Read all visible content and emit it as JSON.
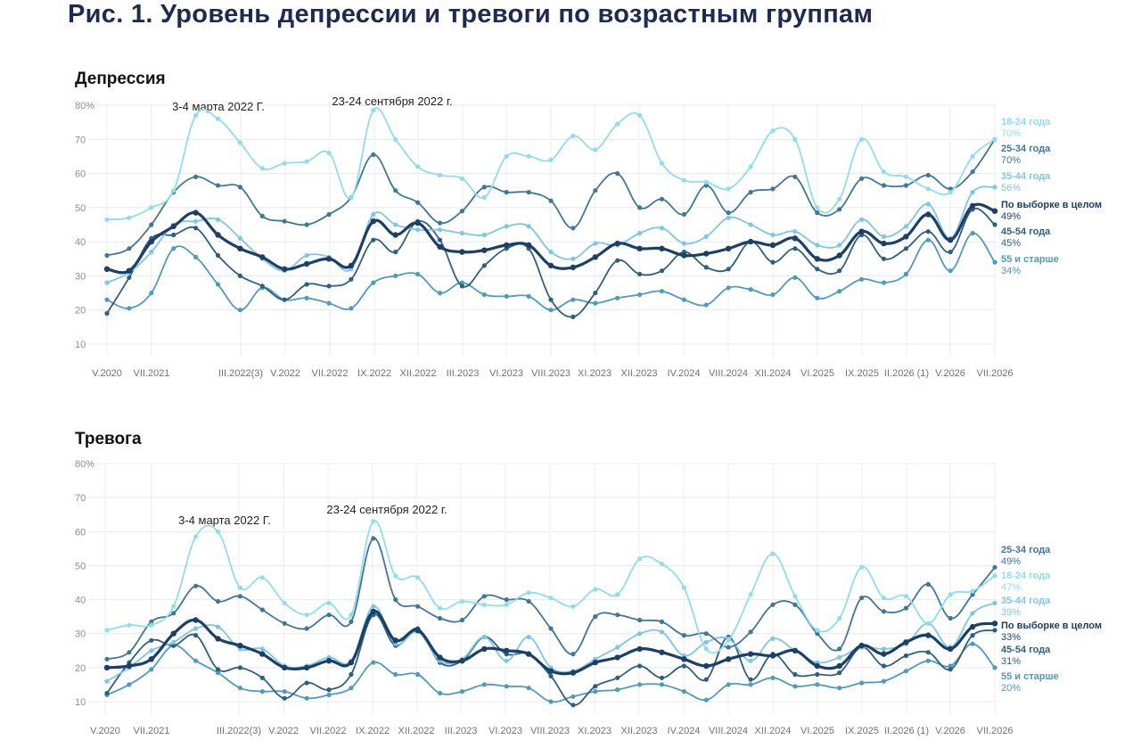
{
  "figure_title": "Рис. 1. Уровень депрессии и тревоги по возрастным группам",
  "colors": {
    "18-24": "#8fdcf0",
    "25-34": "#3f7699",
    "35-44": "#7cc6e6",
    "overall": "#1b3f66",
    "45-54": "#2e5f80",
    "55+": "#4f9ac0"
  },
  "chart_data": [
    {
      "type": "line",
      "title": "Депрессия",
      "ylim": [
        10,
        80
      ],
      "yticks": [
        "80%",
        "70",
        "60",
        "50",
        "40",
        "30",
        "20",
        "10"
      ],
      "grid": true,
      "x_tick_labels": [
        "V.2020",
        "VII.2021",
        "III.2022(3)",
        "V.2022",
        "VII.2022",
        "IX.2022",
        "XII.2022",
        "III.2023",
        "VI.2023",
        "VIII.2023",
        "XI.2023",
        "XII.2023",
        "IV.2024",
        "VIII.2024",
        "XII.2024",
        "VI.2025",
        "IX.2025",
        "II.2026 (1)",
        "V.2026",
        "VII.2026"
      ],
      "annotations": [
        {
          "text": "3-4 марта 2022 Г.",
          "at_index": 4
        },
        {
          "text": "23-24 сентября 2022 г.",
          "at_index": 12
        }
      ],
      "series": [
        {
          "name": "18-24 года",
          "color_key": "18-24",
          "end_label": "70%",
          "values": [
            46.5,
            47,
            50,
            55,
            77,
            76,
            69,
            61.5,
            63,
            63.5,
            66,
            53,
            78.5,
            70,
            62,
            59.5,
            58.5,
            53,
            65,
            65,
            64,
            71,
            67,
            74.5,
            77,
            63,
            58,
            57.5,
            55.5,
            62,
            72.5,
            70,
            50,
            52.5,
            70,
            60.5,
            59,
            55.5,
            54.5,
            65,
            70
          ]
        },
        {
          "name": "25-34 года",
          "color_key": "25-34",
          "end_label": "70%",
          "values": [
            36,
            38,
            45,
            54.5,
            59,
            56.5,
            56,
            47.5,
            46,
            45,
            48,
            53,
            65.5,
            55,
            51.5,
            45.5,
            49,
            56,
            54.5,
            54.5,
            52,
            44,
            55,
            60,
            50,
            52.5,
            48,
            56.5,
            48.5,
            54.5,
            55.5,
            59,
            48.5,
            49.5,
            58.5,
            56.5,
            56.5,
            59.5,
            55.5,
            60.5,
            70
          ]
        },
        {
          "name": "35-44 года",
          "color_key": "35-44",
          "end_label": "56%",
          "values": [
            28,
            31,
            37,
            45,
            46,
            46.5,
            41,
            35,
            31.5,
            36,
            35.5,
            32,
            48,
            45,
            43.5,
            43.5,
            42.5,
            42,
            44.5,
            44.5,
            37,
            35,
            39.5,
            39,
            42.5,
            44,
            39.5,
            41.5,
            47,
            45,
            42,
            43,
            39,
            39,
            46.5,
            41.5,
            44.5,
            51,
            41,
            54.5,
            56
          ]
        },
        {
          "name": "По выборке в целом",
          "color_key": "overall",
          "end_label": "49%",
          "values": [
            32,
            31.5,
            40,
            44.5,
            48.5,
            42,
            38,
            35.5,
            32,
            33.5,
            35,
            33,
            46,
            42,
            45.5,
            38.5,
            37,
            37.5,
            39,
            39,
            33,
            32.5,
            35.5,
            39.5,
            38,
            38,
            36,
            36.5,
            38,
            40,
            39,
            41,
            35,
            36,
            43,
            39.5,
            41.5,
            48,
            40.5,
            50.5,
            49
          ]
        },
        {
          "name": "45-54 года",
          "color_key": "45-54",
          "end_label": "45%",
          "values": [
            19,
            29.5,
            41,
            42,
            44,
            36,
            30,
            27,
            23,
            27.5,
            27,
            29,
            40.5,
            37,
            46,
            40.5,
            27,
            33,
            38,
            38,
            23,
            18,
            25,
            34.5,
            30.5,
            31.5,
            37,
            32.5,
            32,
            40,
            34,
            38,
            32,
            31.5,
            42,
            35,
            38,
            43,
            37,
            49.5,
            45
          ]
        },
        {
          "name": "55 и старше",
          "color_key": "55+",
          "end_label": "34%",
          "values": [
            23,
            20.5,
            25,
            38,
            35.5,
            27.5,
            20,
            26.5,
            23,
            23.5,
            22,
            20.5,
            28,
            30,
            30.5,
            25,
            28,
            24.5,
            24,
            24,
            20,
            23,
            22,
            23.5,
            24.5,
            25.5,
            23,
            21.5,
            26.5,
            26,
            24.5,
            29.5,
            23.5,
            25.5,
            29,
            28,
            30.5,
            40.5,
            31.5,
            42.5,
            34
          ]
        }
      ]
    },
    {
      "type": "line",
      "title": "Тревога",
      "ylim": [
        10,
        80
      ],
      "yticks": [
        "80%",
        "70",
        "60",
        "50",
        "40",
        "30",
        "20",
        "10"
      ],
      "grid": true,
      "x_tick_labels": [
        "V.2020",
        "VII.2021",
        "III.2022(3)",
        "V.2022",
        "VII.2022",
        "IX.2022",
        "XII.2022",
        "III.2023",
        "VI.2023",
        "VIII.2023",
        "XI.2023",
        "XII.2023",
        "IV.2024",
        "VIII.2024",
        "XII.2024",
        "VI.2025",
        "IX.2025",
        "II.2026 (1)",
        "V.2026",
        "VII.2026"
      ],
      "annotations": [
        {
          "text": "3-4 марта 2022 Г.",
          "at_index": 4
        },
        {
          "text": "23-24 сентября 2022 г.",
          "at_index": 12
        }
      ],
      "series": [
        {
          "name": "18-24 года",
          "color_key": "18-24",
          "end_label": "47%",
          "values": [
            31,
            32.5,
            32.5,
            38,
            58.5,
            60,
            43.5,
            46.5,
            39,
            35.5,
            39,
            35.5,
            63,
            47,
            46.5,
            37.5,
            39.5,
            38.5,
            38.5,
            42,
            40.5,
            38,
            43,
            41.5,
            52,
            50.5,
            43.5,
            25.5,
            28,
            41.5,
            53.5,
            41,
            31,
            34.5,
            49.5,
            40.5,
            41,
            33,
            41.5,
            42.5,
            47
          ]
        },
        {
          "name": "25-34 года",
          "color_key": "25-34",
          "end_label": "49%",
          "values": [
            22.5,
            24.5,
            33.5,
            36,
            44,
            39.5,
            41,
            37,
            33,
            31.5,
            35.5,
            33.5,
            58,
            40,
            38,
            34.5,
            34,
            41,
            40,
            39.5,
            31.5,
            24,
            35,
            35.5,
            34,
            33.5,
            29.5,
            30,
            26,
            30.5,
            38.5,
            38.5,
            30,
            25.5,
            40.5,
            36.5,
            37.5,
            44.5,
            34.5,
            41.5,
            49.5
          ]
        },
        {
          "name": "35-44 года",
          "color_key": "35-44",
          "end_label": "39%",
          "values": [
            16,
            20,
            25,
            27.5,
            31.5,
            32,
            25.5,
            25.5,
            20.5,
            20.5,
            23,
            22,
            38,
            27,
            30.5,
            22,
            22.5,
            29,
            22,
            29,
            20,
            19,
            22.5,
            26,
            30,
            30.5,
            23.5,
            27.5,
            28.5,
            22,
            28.5,
            25,
            21.5,
            23,
            26,
            25.5,
            27,
            33,
            26,
            36,
            39
          ]
        },
        {
          "name": "По выборке в целом",
          "color_key": "overall",
          "end_label": "33%",
          "values": [
            20,
            20.5,
            22.5,
            30,
            34,
            28.5,
            26.5,
            24,
            20,
            20,
            22,
            21.5,
            36.5,
            28,
            31,
            23,
            22,
            25.5,
            25,
            24,
            19,
            18.5,
            21.5,
            23,
            25.5,
            24.5,
            22.5,
            20.5,
            22.5,
            24,
            23.5,
            25,
            20.5,
            20.5,
            26.5,
            24,
            27.5,
            29.5,
            25.5,
            32,
            33
          ]
        },
        {
          "name": "45-54 года",
          "color_key": "45-54",
          "end_label": "31%",
          "values": [
            12.5,
            21.5,
            28,
            26.5,
            29.5,
            19.5,
            20,
            17,
            11,
            15.5,
            13.5,
            18,
            35.5,
            26.5,
            31.5,
            21.5,
            22,
            29,
            24,
            24,
            17.5,
            9,
            14.5,
            17,
            20.5,
            17,
            20.5,
            16.5,
            29,
            16.5,
            24,
            18,
            18,
            18.5,
            26,
            20.5,
            23.5,
            24.5,
            19.5,
            29.5,
            31
          ]
        },
        {
          "name": "55 и старше",
          "color_key": "55+",
          "end_label": "20%",
          "values": [
            12,
            15,
            19.5,
            26.5,
            22,
            18.5,
            14,
            13,
            13,
            11,
            12,
            14,
            21.5,
            18,
            18,
            12.5,
            13,
            15,
            14.5,
            14,
            10,
            11.5,
            13,
            13.5,
            15,
            15,
            13,
            10.5,
            15,
            15,
            17,
            14.5,
            15,
            14,
            15.5,
            16,
            19,
            22,
            20.5,
            27,
            20
          ]
        }
      ]
    }
  ]
}
